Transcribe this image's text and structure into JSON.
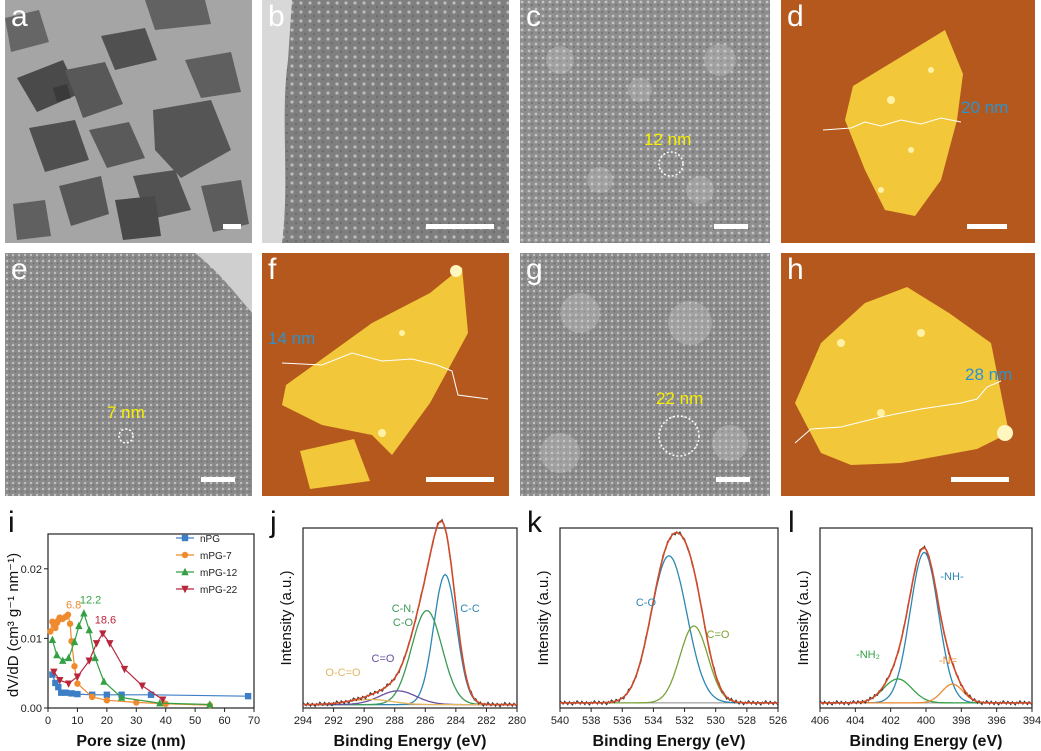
{
  "panels": {
    "a": {
      "letter": "a"
    },
    "b": {
      "letter": "b"
    },
    "c": {
      "letter": "c",
      "annotation": "12 nm"
    },
    "d": {
      "letter": "d",
      "annotation": "20 nm"
    },
    "e": {
      "letter": "e",
      "annotation": "7 nm"
    },
    "f": {
      "letter": "f",
      "annotation": "14 nm"
    },
    "g": {
      "letter": "g",
      "annotation": "22 nm"
    },
    "h": {
      "letter": "h",
      "annotation": "28 nm"
    },
    "i": {
      "letter": "i"
    },
    "j": {
      "letter": "j"
    },
    "k": {
      "letter": "k"
    },
    "l": {
      "letter": "l"
    }
  },
  "colors": {
    "afm_background": "#b5581d",
    "afm_sheet": "#f2c73a",
    "annotation_yellow": "#f6f000",
    "annotation_blue": "#2a93cf"
  },
  "chart_data": [
    {
      "id": "i",
      "type": "line",
      "xlabel": "Pore size (nm)",
      "ylabel": "dV/dD (cm³ g⁻¹ nm⁻¹)",
      "xlim": [
        0,
        70
      ],
      "ylim": [
        0,
        0.025
      ],
      "xticks": [
        "0",
        "10",
        "20",
        "30",
        "40",
        "50",
        "60",
        "70"
      ],
      "yticks": [
        "0.00",
        "0.01",
        "0.02"
      ],
      "legend_position": "top-right",
      "series": [
        {
          "name": "nPG",
          "color": "#3d7fc6",
          "marker": "square",
          "x": [
            1.5,
            2.5,
            3.5,
            4.5,
            6,
            8,
            10,
            15,
            20,
            25,
            35,
            68
          ],
          "y": [
            0.0048,
            0.0036,
            0.003,
            0.0022,
            0.0022,
            0.0021,
            0.002,
            0.0019,
            0.0019,
            0.0019,
            0.0019,
            0.0017
          ]
        },
        {
          "name": "mPG-7",
          "color": "#ef8a2e",
          "marker": "circle",
          "x": [
            0.8,
            1.5,
            2,
            2.5,
            3,
            3.5,
            4,
            5,
            6,
            6.8,
            7.5,
            8,
            9,
            10,
            15,
            20,
            30,
            40,
            55
          ],
          "y": [
            0.011,
            0.0124,
            0.0119,
            0.0115,
            0.0122,
            0.0126,
            0.013,
            0.0128,
            0.0131,
            0.0134,
            0.0121,
            0.0096,
            0.006,
            0.0035,
            0.0016,
            0.0011,
            0.0008,
            0.0006,
            0.0004
          ]
        },
        {
          "name": "mPG-12",
          "color": "#34a043",
          "marker": "triangle-up",
          "x": [
            1.5,
            3,
            5,
            7,
            9,
            10.5,
            12.2,
            14,
            16,
            19,
            25,
            38,
            55
          ],
          "y": [
            0.0098,
            0.0076,
            0.0068,
            0.0072,
            0.0095,
            0.0118,
            0.0136,
            0.0112,
            0.0072,
            0.0038,
            0.0015,
            0.0007,
            0.0005
          ]
        },
        {
          "name": "mPG-22",
          "color": "#b8263a",
          "marker": "triangle-down",
          "x": [
            2,
            4,
            7,
            10,
            14,
            16.5,
            18.6,
            21,
            26,
            32,
            39
          ],
          "y": [
            0.0052,
            0.004,
            0.0035,
            0.0045,
            0.0068,
            0.0093,
            0.0107,
            0.0093,
            0.0056,
            0.0032,
            0.0012
          ]
        }
      ],
      "annotations": [
        {
          "text": "6.8",
          "color": "#ef8a2e"
        },
        {
          "text": "12.2",
          "color": "#34a043"
        },
        {
          "text": "18.6",
          "color": "#b8263a"
        }
      ]
    },
    {
      "id": "j",
      "type": "line",
      "xlabel": "Binding Energy (eV)",
      "ylabel": "Intensity (a.u.)",
      "xlim": [
        294,
        280
      ],
      "xticks": [
        "294",
        "292",
        "290",
        "288",
        "286",
        "284",
        "282",
        "280"
      ],
      "components": [
        {
          "label": "C-C",
          "center": 284.7,
          "height": 0.76,
          "width": 0.75,
          "color": "#2d86b3"
        },
        {
          "label": "C-N,\nC-O",
          "center": 285.9,
          "height": 0.55,
          "width": 1.0,
          "color": "#3c9a57"
        },
        {
          "label": "C=O",
          "center": 287.8,
          "height": 0.08,
          "width": 1.2,
          "color": "#6950a1"
        },
        {
          "label": "O-C=O",
          "center": 289.6,
          "height": 0.03,
          "width": 1.4,
          "color": "#e3b55f"
        }
      ],
      "baseline": 0.02,
      "fit_color": "#d24a2a"
    },
    {
      "id": "k",
      "type": "line",
      "xlabel": "Binding Energy (eV)",
      "ylabel": "Intensity (a.u.)",
      "xlim": [
        540,
        526
      ],
      "xticks": [
        "540",
        "538",
        "536",
        "534",
        "532",
        "530",
        "528",
        "526"
      ],
      "components": [
        {
          "label": "C-O",
          "center": 533.0,
          "height": 0.86,
          "width": 1.15,
          "color": "#2d86b3"
        },
        {
          "label": "C=O",
          "center": 531.4,
          "height": 0.45,
          "width": 0.9,
          "color": "#7ba33a"
        }
      ],
      "baseline": 0.03,
      "fit_color": "#d24a2a"
    },
    {
      "id": "l",
      "type": "line",
      "xlabel": "Binding Energy (eV)",
      "ylabel": "Intensity (a.u.)",
      "xlim": [
        406,
        394
      ],
      "xticks": [
        "406",
        "404",
        "402",
        "400",
        "398",
        "396",
        "394"
      ],
      "components": [
        {
          "label": "-NH-",
          "center": 400.1,
          "height": 0.88,
          "width": 0.8,
          "color": "#2d86b3"
        },
        {
          "label": "-NH₂",
          "center": 401.6,
          "height": 0.14,
          "width": 0.8,
          "color": "#34a043"
        },
        {
          "label": "-N=",
          "center": 398.5,
          "height": 0.11,
          "width": 0.6,
          "color": "#ef8a2e"
        }
      ],
      "baseline": 0.03,
      "fit_color": "#d24a2a"
    }
  ]
}
